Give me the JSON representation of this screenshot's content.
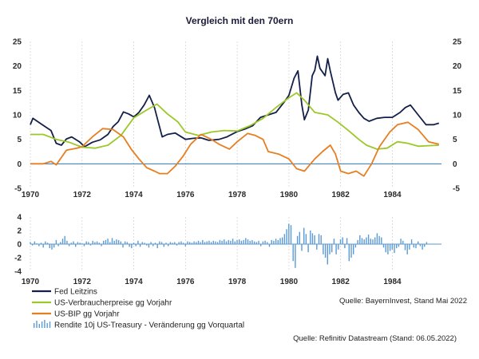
{
  "colors": {
    "rule": "#4a90d9",
    "fed": "#14204a",
    "cpi": "#9cc82a",
    "gdp": "#e67e22",
    "treasury": "#5b9bd5",
    "zero_line": "#2e75b6",
    "grid": "#d4d4d4"
  },
  "chart_data": {
    "type": "line",
    "title": "Vergleich mit den 70ern",
    "xlim": [
      1970,
      1985.9
    ],
    "x_ticks": [
      1970,
      1972,
      1974,
      1976,
      1978,
      1980,
      1982,
      1984
    ],
    "top_panel": {
      "ylim": [
        -5,
        25
      ],
      "y_ticks": [
        -5,
        0,
        5,
        10,
        15,
        20,
        25
      ],
      "series": [
        {
          "name": "Fed Leitzins",
          "key": "fed",
          "x": [
            1970,
            1970.1,
            1970.4,
            1970.8,
            1971.0,
            1971.2,
            1971.4,
            1971.6,
            1971.9,
            1972.1,
            1972.4,
            1972.7,
            1973.0,
            1973.2,
            1973.4,
            1973.6,
            1973.8,
            1974.0,
            1974.2,
            1974.4,
            1974.6,
            1974.8,
            1974.95,
            1975.1,
            1975.3,
            1975.6,
            1976.0,
            1976.3,
            1976.6,
            1976.9,
            1977.3,
            1977.6,
            1978.0,
            1978.3,
            1978.6,
            1978.9,
            1979.2,
            1979.5,
            1979.8,
            1980.0,
            1980.2,
            1980.35,
            1980.5,
            1980.6,
            1980.75,
            1980.9,
            1981.0,
            1981.1,
            1981.2,
            1981.4,
            1981.5,
            1981.6,
            1981.8,
            1981.9,
            1982.1,
            1982.3,
            1982.5,
            1982.7,
            1982.9,
            1983.1,
            1983.4,
            1983.7,
            1984.0,
            1984.3,
            1984.5,
            1984.7,
            1985.0,
            1985.3,
            1985.6,
            1985.8
          ],
          "y": [
            8,
            9.3,
            8.2,
            6.8,
            4.2,
            3.8,
            5.1,
            5.5,
            4.5,
            3.5,
            4.4,
            4.9,
            6.0,
            7.6,
            8.6,
            10.6,
            10.2,
            9.6,
            10.5,
            12.0,
            14.0,
            11.5,
            8.5,
            5.5,
            6.0,
            6.3,
            5.0,
            5.2,
            5.3,
            4.8,
            5.0,
            5.5,
            6.6,
            7.1,
            7.8,
            9.5,
            10.0,
            10.5,
            12.5,
            14.0,
            17.5,
            19.0,
            12.0,
            9.0,
            11.0,
            18.0,
            19.1,
            22.0,
            19.5,
            18.0,
            21.5,
            19.0,
            14.5,
            13.0,
            14.2,
            14.5,
            12.0,
            10.5,
            9.3,
            8.7,
            9.3,
            9.5,
            9.5,
            10.5,
            11.5,
            12.0,
            10.0,
            8.0,
            8.0,
            8.3
          ]
        },
        {
          "name": "US-Verbraucherpreise gg Vorjahr",
          "key": "cpi",
          "x": [
            1970,
            1970.5,
            1971.0,
            1971.5,
            1972.0,
            1972.5,
            1973.0,
            1973.5,
            1974.0,
            1974.5,
            1974.9,
            1975.3,
            1975.7,
            1976.0,
            1976.5,
            1977.0,
            1977.5,
            1978.0,
            1978.5,
            1979.0,
            1979.5,
            1980.0,
            1980.3,
            1980.6,
            1981.0,
            1981.5,
            1981.9,
            1982.3,
            1982.7,
            1983.0,
            1983.4,
            1983.8,
            1984.2,
            1984.6,
            1985.0,
            1985.4,
            1985.8
          ],
          "y": [
            6.0,
            6.0,
            5.0,
            4.4,
            3.4,
            3.2,
            3.8,
            5.8,
            9.4,
            11.0,
            12.2,
            10.2,
            8.6,
            6.5,
            5.8,
            6.5,
            6.8,
            6.7,
            7.8,
            9.3,
            11.5,
            13.5,
            14.5,
            13.0,
            10.5,
            10.0,
            8.5,
            6.8,
            5.0,
            3.8,
            3.0,
            3.2,
            4.5,
            4.2,
            3.6,
            3.7,
            3.8
          ]
        },
        {
          "name": "US-BIP gg Vorjahr",
          "key": "gdp",
          "x": [
            1970,
            1970.5,
            1970.8,
            1971.0,
            1971.4,
            1971.8,
            1972.0,
            1972.4,
            1972.8,
            1973.2,
            1973.6,
            1973.9,
            1974.2,
            1974.5,
            1974.8,
            1975.0,
            1975.3,
            1975.6,
            1975.9,
            1976.2,
            1976.6,
            1977.0,
            1977.3,
            1977.7,
            1978.0,
            1978.4,
            1978.7,
            1979.0,
            1979.2,
            1979.6,
            1980.0,
            1980.3,
            1980.6,
            1981.0,
            1981.3,
            1981.6,
            1981.8,
            1982.0,
            1982.3,
            1982.6,
            1982.9,
            1983.2,
            1983.5,
            1983.9,
            1984.2,
            1984.6,
            1985.0,
            1985.4,
            1985.8
          ],
          "y": [
            0,
            0,
            0.5,
            -0.2,
            2.8,
            3.2,
            3.5,
            5.5,
            7.2,
            7.0,
            5.5,
            3.0,
            1.0,
            -0.8,
            -1.5,
            -2.0,
            -2.0,
            -0.5,
            1.5,
            4.0,
            6.0,
            5.0,
            4.0,
            3.0,
            4.5,
            6.2,
            5.8,
            5.0,
            2.5,
            2.0,
            1.0,
            -1.0,
            -1.5,
            1.0,
            2.5,
            3.8,
            2.0,
            -1.5,
            -2.0,
            -1.5,
            -2.5,
            0.0,
            3.5,
            6.5,
            8.0,
            8.5,
            7.0,
            4.5,
            4.0
          ]
        }
      ]
    },
    "bottom_panel": {
      "ylim": [
        -4,
        4
      ],
      "y_ticks": [
        -4,
        -2,
        0,
        2,
        4
      ],
      "series": [
        {
          "name": "Rendite 10j US-Treasury - Veränderung gg Vorquartal",
          "key": "treasury",
          "type": "bar",
          "x_start": 1970,
          "x_step": 0.0833,
          "values": [
            0.3,
            -0.2,
            0.4,
            0.1,
            -0.3,
            0.2,
            -0.5,
            0.4,
            0.2,
            -0.6,
            -0.8,
            -0.5,
            0.6,
            -0.3,
            0.3,
            0.8,
            1.2,
            0.5,
            -0.3,
            0.2,
            0.4,
            -0.4,
            0.3,
            0.2,
            0.1,
            -0.3,
            0.4,
            0.3,
            -0.2,
            0.5,
            0.3,
            0.4,
            0.2,
            -0.3,
            0.5,
            0.6,
            0.8,
            0.3,
            0.9,
            0.5,
            0.7,
            0.6,
            0.4,
            -0.5,
            0.4,
            0.3,
            -0.4,
            -0.6,
            0.2,
            -0.3,
            0.5,
            -0.4,
            0.3,
            0.2,
            -0.2,
            -0.5,
            0.3,
            -0.3,
            0.2,
            -0.6,
            0.4,
            0.3,
            -0.4,
            0.2,
            -0.3,
            0.3,
            0.2,
            0.3,
            -0.2,
            0.3,
            0.4,
            0.2,
            -0.3,
            0.4,
            0.3,
            0.2,
            0.4,
            0.3,
            0.5,
            0.3,
            0.6,
            0.3,
            0.4,
            0.5,
            0.3,
            0.5,
            0.4,
            0.3,
            0.6,
            0.5,
            0.7,
            0.4,
            0.6,
            0.5,
            0.8,
            0.4,
            0.6,
            0.7,
            0.5,
            0.6,
            0.9,
            0.7,
            0.5,
            0.6,
            0.4,
            0.3,
            0.5,
            -0.3,
            0.4,
            0.5,
            0.3,
            -0.4,
            0.6,
            0.5,
            0.8,
            0.6,
            0.9,
            1.0,
            1.5,
            2.2,
            3.0,
            2.8,
            -2.5,
            -3.5,
            1.2,
            1.8,
            -1.0,
            2.4,
            1.5,
            -1.2,
            2.0,
            1.6,
            1.3,
            -0.8,
            1.5,
            1.3,
            -1.5,
            -2.0,
            -3.0,
            -1.5,
            -1.2,
            0.8,
            -1.5,
            -0.8,
            0.7,
            1.0,
            -0.6,
            0.9,
            -2.5,
            -2.0,
            -1.5,
            -0.5,
            0.6,
            1.3,
            0.9,
            0.7,
            1.0,
            1.4,
            0.8,
            0.7,
            1.0,
            1.6,
            1.2,
            1.0,
            -0.5,
            -1.2,
            -1.5,
            -1.0,
            -0.8,
            -1.3,
            -0.6,
            -0.4,
            0.8,
            0.5,
            -0.9,
            -1.5,
            -0.8,
            0.7,
            -0.5,
            -0.6,
            0.4,
            -0.3,
            -0.8,
            -0.4,
            0.3
          ]
        }
      ]
    },
    "sources": [
      "Quelle: BayernInvest, Stand Mai 2022",
      "Quelle: Refinitiv Datastream (Stand: 06.05.2022)"
    ]
  }
}
